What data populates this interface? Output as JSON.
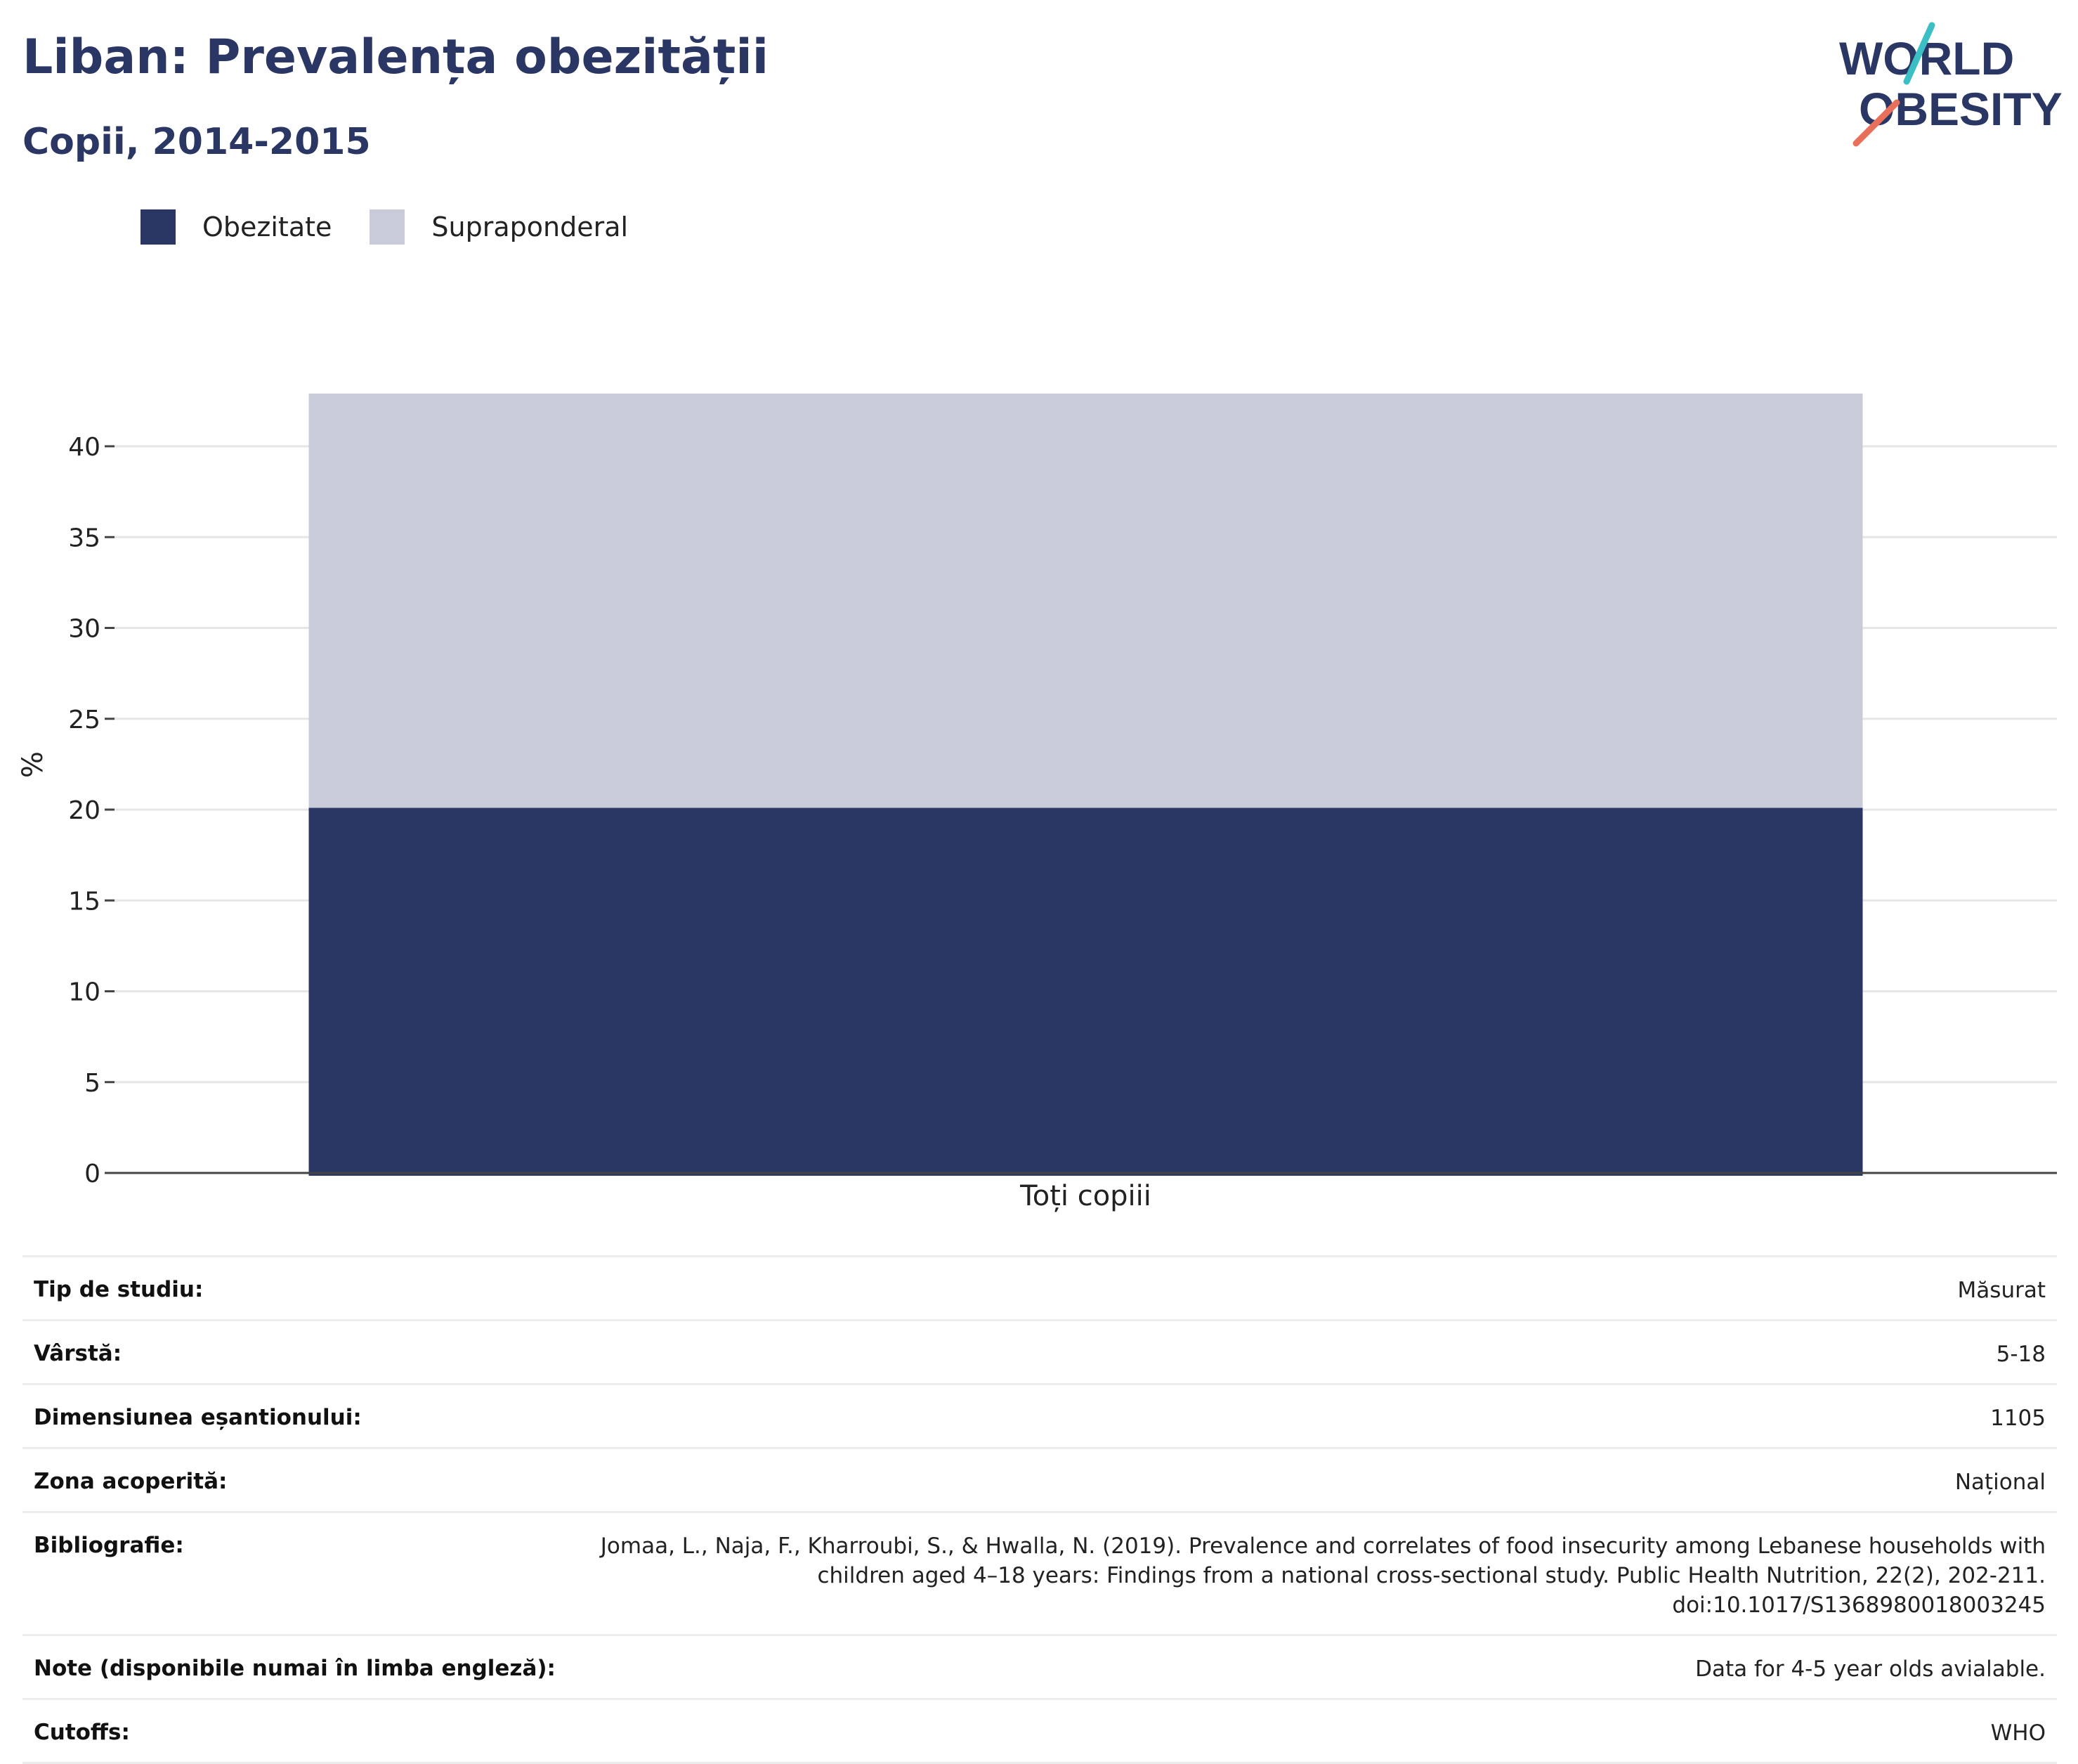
{
  "header": {
    "title": "Liban: Prevalența obezității",
    "subtitle": "Copii, 2014-2015"
  },
  "logo": {
    "line1": "WORLD",
    "line2": "OBESITY",
    "colors": {
      "text": "#2a3663",
      "slash_top": "#3bbfc4",
      "slash_bottom": "#e8705a"
    }
  },
  "legend": [
    {
      "label": "Obezitate",
      "color": "#2a3663"
    },
    {
      "label": "Supraponderal",
      "color": "#c9ccd8"
    }
  ],
  "chart_data": {
    "type": "bar",
    "stacked": true,
    "categories": [
      "Toți copiii"
    ],
    "series": [
      {
        "name": "Obezitate",
        "values": [
          20.1
        ],
        "color": "#2a3663"
      },
      {
        "name": "Supraponderal",
        "values": [
          22.8
        ],
        "color": "#c9ccd8"
      }
    ],
    "ylabel": "%",
    "ylim": [
      0,
      43
    ],
    "yticks": [
      0,
      5,
      10,
      15,
      20,
      25,
      30,
      35,
      40
    ],
    "grid": true,
    "legend_position": "top-left"
  },
  "info": [
    {
      "label": "Tip de studiu:",
      "value": "Măsurat"
    },
    {
      "label": "Vârstă:",
      "value": "5-18"
    },
    {
      "label": "Dimensiunea eșantionului:",
      "value": "1105"
    },
    {
      "label": "Zona acoperită:",
      "value": "Național"
    },
    {
      "label": "Bibliografie:",
      "lines": [
        "Jomaa, L., Naja, F., Kharroubi, S., & Hwalla, N. (2019). Prevalence and correlates of food insecurity among Lebanese households with",
        "children aged 4–18 years: Findings from a national cross-sectional study. Public Health Nutrition, 22(2), 202-211.",
        "doi:10.1017/S1368980018003245"
      ]
    },
    {
      "label": "Note (disponibile numai în limba engleză):",
      "value": "Data for 4-5 year olds avialable."
    },
    {
      "label": "Cutoffs:",
      "value": "WHO"
    }
  ]
}
